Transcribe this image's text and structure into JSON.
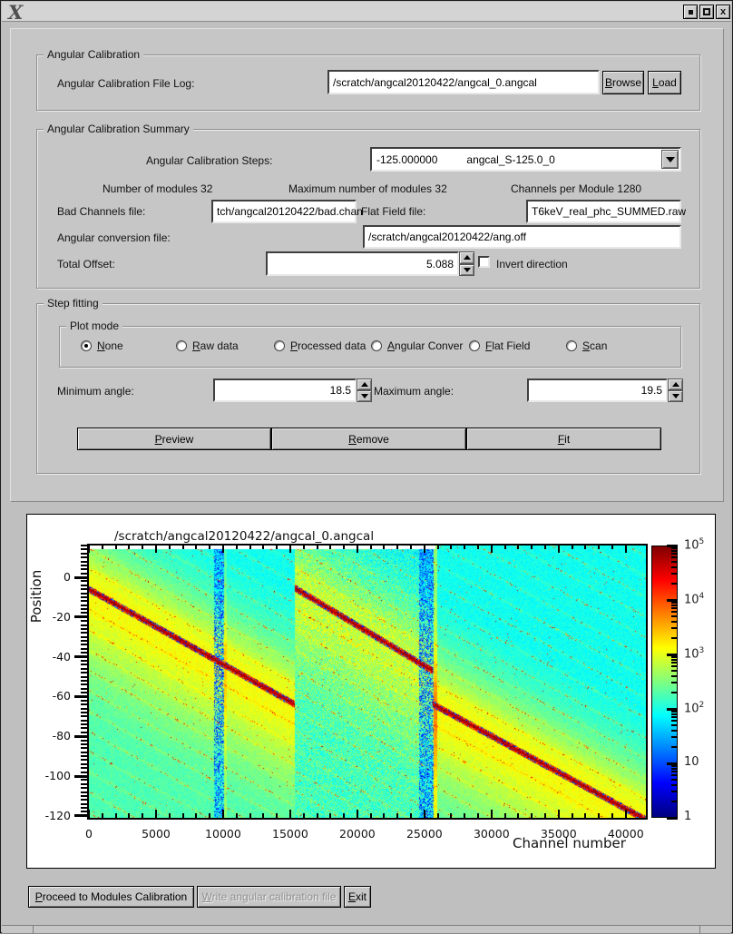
{
  "window": {
    "titlebar": {
      "logo": "X"
    }
  },
  "form": {
    "angular_calibration": {
      "legend": "Angular Calibration",
      "file_log_label": "Angular Calibration File Log:",
      "file_log_value": "/scratch/angcal20120422/angcal_0.angcal",
      "browse_label": "Browse",
      "load_label": "Load"
    },
    "summary": {
      "legend": "Angular Calibration Summary",
      "steps_label": "Angular Calibration Steps:",
      "steps_value_number": "-125.000000",
      "steps_value_name": "angcal_S-125.0_0",
      "modules_label": "Number of modules 32",
      "max_modules_label": "Maximum number of modules 32",
      "channels_label": "Channels per Module 1280",
      "bad_channels_label": "Bad Channels file:",
      "bad_channels_value": "tch/angcal20120422/bad.chan",
      "flat_field_label": "Flat Field file:",
      "flat_field_value": "T6keV_real_phc_SUMMED.raw",
      "ang_conv_label": "Angular conversion file:",
      "ang_conv_value": "/scratch/angcal20120422/ang.off",
      "total_offset_label": "Total Offset:",
      "total_offset_value": "5.088",
      "invert_label": "Invert direction",
      "invert_checked": false
    },
    "step_fitting": {
      "legend": "Step fitting",
      "plot_mode_legend": "Plot mode",
      "plot_modes": [
        {
          "label": "None",
          "selected": true
        },
        {
          "label": "Raw data",
          "selected": false
        },
        {
          "label": "Processed data",
          "selected": false
        },
        {
          "label": "Angular Conver",
          "selected": false
        },
        {
          "label": "Flat Field",
          "selected": false
        },
        {
          "label": "Scan",
          "selected": false
        }
      ],
      "min_angle_label": "Minimum angle:",
      "min_angle_value": "18.5",
      "max_angle_label": "Maximum angle:",
      "max_angle_value": "19.5",
      "preview_label": "Preview",
      "remove_label": "Remove",
      "fit_label": "Fit"
    }
  },
  "chart_data": {
    "type": "heatmap",
    "title": "/scratch/angcal20120422/angcal_0.angcal",
    "xlabel": "Channel number",
    "ylabel": "Position",
    "xlim": [
      0,
      41500
    ],
    "ylim": [
      -121,
      16
    ],
    "x_ticks": [
      0,
      5000,
      10000,
      15000,
      20000,
      25000,
      30000,
      35000,
      40000
    ],
    "x_minor_step": 1000,
    "y_ticks": [
      0,
      -20,
      -40,
      -60,
      -80,
      -100,
      -120
    ],
    "y_minor_step": 2,
    "grid": false,
    "colorbar": {
      "scale": "log",
      "tick_labels": [
        "1",
        "10",
        "10^2",
        "10^3",
        "10^4",
        "10^5"
      ],
      "colormap": "jet",
      "colors": [
        {
          "pct": 0,
          "color": "#00007f"
        },
        {
          "pct": 12.5,
          "color": "#0000ff"
        },
        {
          "pct": 37.5,
          "color": "#00ffff"
        },
        {
          "pct": 62.5,
          "color": "#ffff00"
        },
        {
          "pct": 87.5,
          "color": "#ff0000"
        },
        {
          "pct": 100,
          "color": "#7f0000"
        }
      ]
    },
    "tracks": [
      {
        "x0": 0,
        "x1": 15360,
        "p0": -6,
        "p1": -64
      },
      {
        "x0": 15360,
        "x1": 25600,
        "p0": -5.5,
        "p1": -47
      },
      {
        "x0": 25800,
        "x1": 41500,
        "p0": -64.5,
        "p1": -122
      }
    ],
    "section_bounds": [
      15360,
      25600
    ],
    "noisy_channel_bands": [
      [
        9300,
        10100
      ],
      [
        24600,
        25700
      ]
    ],
    "top_step": {
      "channel": 25800,
      "pos": 14.2
    }
  },
  "footer": {
    "proceed_label": "Proceed to Modules Calibration",
    "write_label": "Write angular calibration file",
    "write_disabled": true,
    "exit_label": "Exit"
  }
}
